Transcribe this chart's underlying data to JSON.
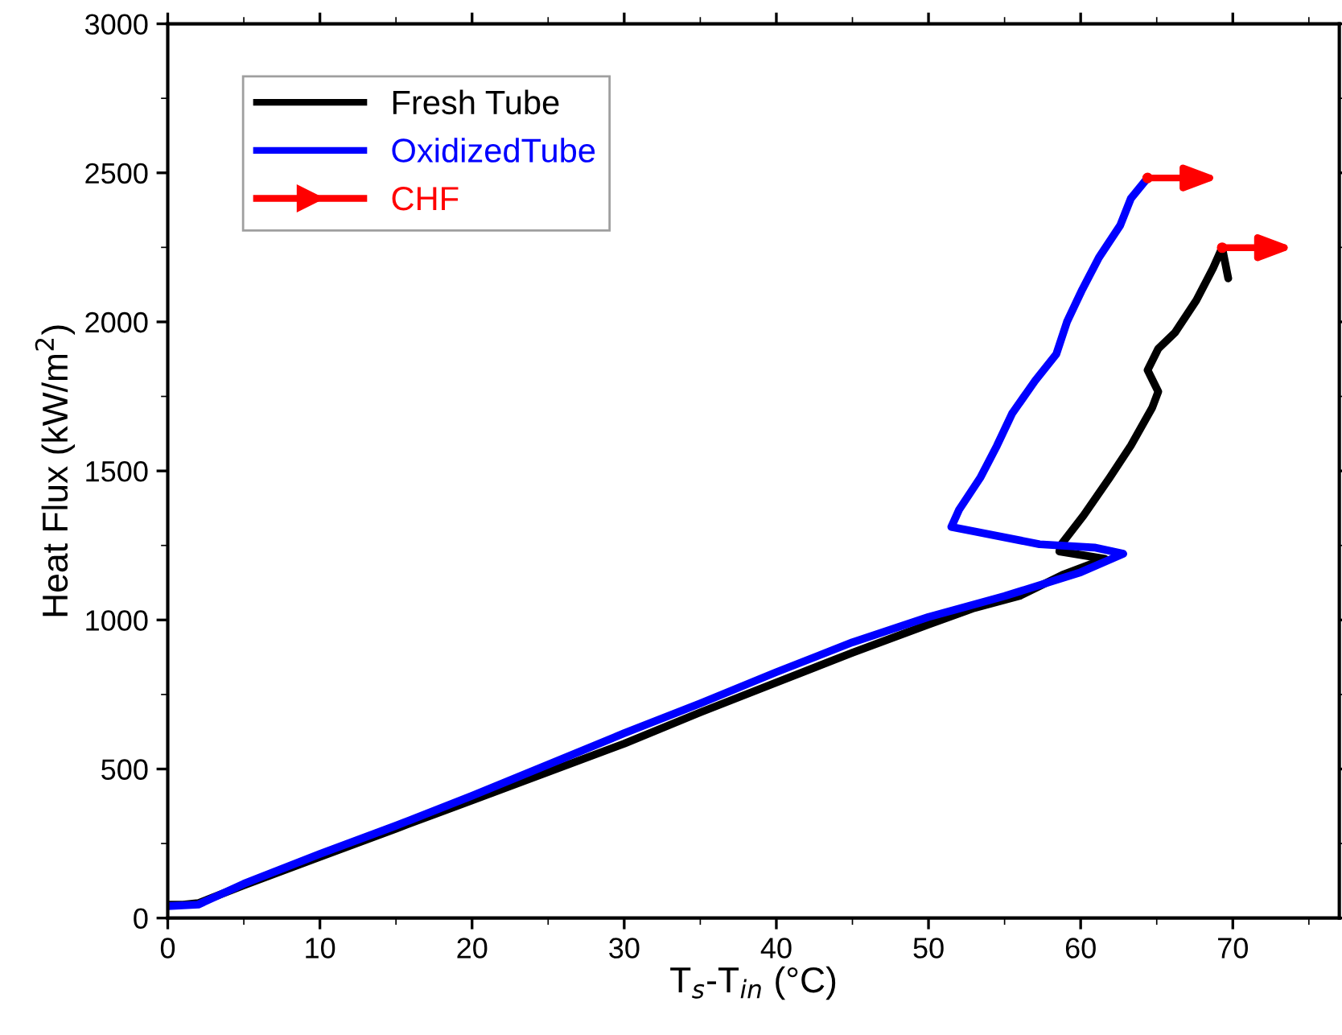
{
  "chart_data": {
    "type": "line",
    "xlabel": "T$_{s}$-T$_{in}$ (°C)",
    "ylabel": "Heat Flux (kW/m$^{2}$)",
    "xlim": [
      0,
      77
    ],
    "ylim": [
      0,
      3000
    ],
    "xticks": [
      0,
      10,
      20,
      30,
      40,
      50,
      60,
      70
    ],
    "yticks": [
      0,
      500,
      1000,
      1500,
      2000,
      2500,
      3000
    ],
    "grid": false,
    "legend": "top left",
    "marker": "none",
    "line_style": "solid",
    "series": [
      {
        "name": "Fresh Tube",
        "color": "#000000",
        "x": [
          0,
          1,
          2,
          3,
          5,
          10,
          15,
          20,
          25,
          30,
          35,
          40,
          45,
          50,
          53,
          56,
          58.8,
          61.6,
          58.6,
          58.7,
          60.2,
          61.9,
          63.3,
          64.7,
          65.1,
          64.4,
          65.1,
          66.2,
          67.6,
          68.7,
          69.3,
          69.7
        ],
        "values": [
          45,
          45,
          50,
          70,
          110,
          205,
          300,
          395,
          490,
          585,
          690,
          790,
          890,
          985,
          1040,
          1081,
          1151,
          1205,
          1230,
          1252,
          1351,
          1477,
          1585,
          1712,
          1766,
          1838,
          1910,
          1964,
          2072,
          2180,
          2249,
          2146
        ]
      },
      {
        "name": "OxidizedTube",
        "color": "#0000ff",
        "x": [
          0,
          2,
          5,
          10,
          15,
          20,
          25,
          30,
          35,
          40,
          45,
          50,
          55,
          60,
          62.8,
          60.9,
          57.3,
          53,
          51.5,
          52,
          53.4,
          54.5,
          55.5,
          57,
          58.4,
          59.1,
          60.1,
          61.2,
          62.6,
          63.3,
          64.4
        ],
        "values": [
          40,
          45,
          115,
          215,
          310,
          410,
          515,
          620,
          720,
          825,
          925,
          1010,
          1080,
          1160,
          1222,
          1243,
          1254,
          1297,
          1312,
          1369,
          1477,
          1585,
          1693,
          1802,
          1892,
          2000,
          2108,
          2216,
          2324,
          2414,
          2483
        ]
      },
      {
        "name": "CHF",
        "type": "scatter",
        "marker": "circle",
        "color": "#ff0000",
        "x": [
          64.4,
          69.3
        ],
        "values": [
          2483,
          2249
        ]
      }
    ]
  }
}
